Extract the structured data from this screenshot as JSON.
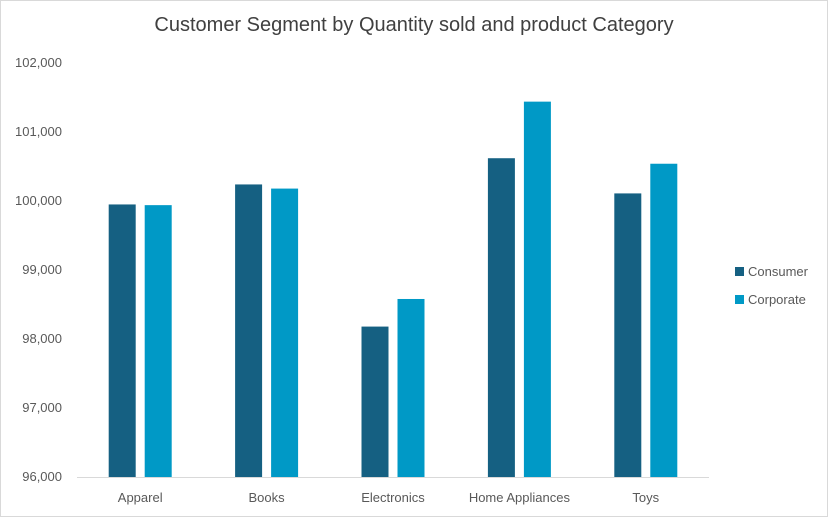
{
  "chart_data": {
    "type": "bar",
    "title": "Customer Segment by Quantity sold and product Category",
    "xlabel": "",
    "ylabel": "",
    "categories": [
      "Apparel",
      "Books",
      "Electronics",
      "Home Appliances",
      "Toys"
    ],
    "series": [
      {
        "name": "Consumer",
        "color": "#156082",
        "values": [
          99950,
          100240,
          98180,
          100620,
          100110
        ]
      },
      {
        "name": "Corporate",
        "color": "#0099C6",
        "values": [
          99940,
          100180,
          98580,
          101440,
          100540
        ]
      }
    ],
    "ylim": [
      96000,
      102000
    ],
    "yticks": [
      96000,
      97000,
      98000,
      99000,
      100000,
      101000,
      102000
    ],
    "ytick_labels": [
      "96,000",
      "97,000",
      "98,000",
      "99,000",
      "100,000",
      "101,000",
      "102,000"
    ],
    "grid": false,
    "legend_position": "right"
  }
}
